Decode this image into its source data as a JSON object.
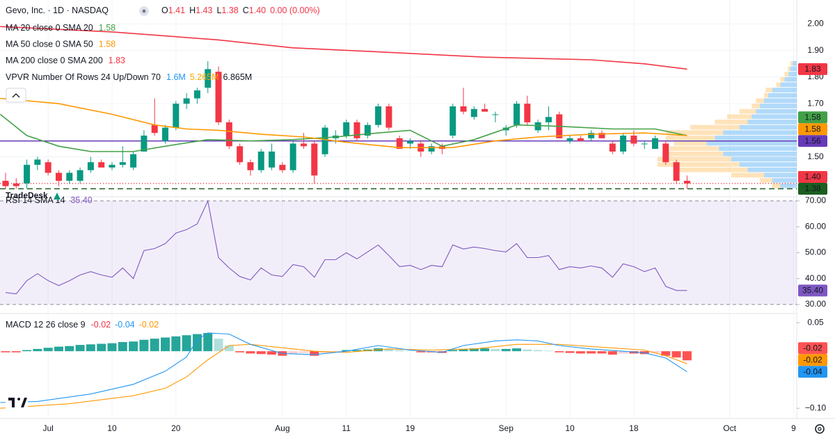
{
  "chart_data": [
    {
      "type": "candlestick",
      "title": "Gevo, Inc. · 1D · NASDAQ",
      "readout": [
        {
          "key": "O",
          "text": "1.41"
        },
        {
          "key": "H",
          "text": "1.43"
        },
        {
          "key": "L",
          "text": "1.38"
        },
        {
          "key": "C",
          "text": "1.40"
        }
      ],
      "change": "0.00 (0.00%)",
      "annotation": "TradeDesk",
      "xlim": [
        -0.52,
        74.3
      ],
      "xticks": [
        {
          "value": 4,
          "label": "Jul"
        },
        {
          "value": 10,
          "label": "10"
        },
        {
          "value": 16,
          "label": "20"
        },
        {
          "value": 26,
          "label": "Aug"
        },
        {
          "value": 32,
          "label": "11"
        },
        {
          "value": 38,
          "label": "19"
        },
        {
          "value": 47,
          "label": "Sep"
        },
        {
          "value": 53,
          "label": "10"
        },
        {
          "value": 59,
          "label": "18"
        },
        {
          "value": 68,
          "label": "Oct"
        },
        {
          "value": 74,
          "label": "9"
        }
      ],
      "ylim": [
        1.35,
        2.09
      ],
      "yticks": [
        {
          "value": 1.5,
          "label": "1.50"
        },
        {
          "value": 1.7,
          "label": "1.70"
        },
        {
          "value": 1.8,
          "label": "1.80"
        },
        {
          "value": 1.9,
          "label": "1.90"
        },
        {
          "value": 2.0,
          "label": "2.00"
        }
      ],
      "grid": true,
      "up_color": "#089981",
      "down_color": "#f23645",
      "open": [
        1.41,
        1.4,
        1.4,
        1.47,
        1.48,
        1.44,
        1.41,
        1.41,
        1.45,
        1.48,
        1.46,
        1.47,
        1.46,
        1.52,
        1.62,
        1.56,
        1.61,
        1.7,
        1.72,
        1.76,
        1.82,
        1.63,
        1.54,
        1.48,
        1.45,
        1.46,
        1.47,
        1.45,
        1.55,
        1.55,
        1.51,
        1.57,
        1.58,
        1.63,
        1.58,
        1.62,
        1.69,
        1.57,
        1.55,
        1.55,
        1.52,
        1.54,
        1.58,
        1.69,
        1.65,
        1.68,
        1.66,
        1.6,
        1.62,
        1.7,
        1.6,
        1.63,
        1.66,
        1.56,
        1.57,
        1.57,
        1.59,
        1.55,
        1.52,
        1.58,
        1.55,
        1.53,
        1.55,
        1.48,
        1.41
      ],
      "high": [
        1.44,
        1.42,
        1.49,
        1.5,
        1.49,
        1.45,
        1.45,
        1.46,
        1.5,
        1.49,
        1.48,
        1.54,
        1.52,
        1.6,
        1.72,
        1.62,
        1.71,
        1.74,
        1.76,
        1.86,
        1.84,
        1.64,
        1.55,
        1.49,
        1.53,
        1.55,
        1.48,
        1.56,
        1.59,
        1.56,
        1.62,
        1.6,
        1.64,
        1.64,
        1.63,
        1.7,
        1.7,
        1.58,
        1.57,
        1.56,
        1.55,
        1.55,
        1.7,
        1.76,
        1.69,
        1.7,
        1.67,
        1.62,
        1.71,
        1.73,
        1.64,
        1.69,
        1.67,
        1.58,
        1.58,
        1.6,
        1.6,
        1.56,
        1.59,
        1.6,
        1.56,
        1.58,
        1.56,
        1.49,
        1.43
      ],
      "low": [
        1.38,
        1.38,
        1.38,
        1.45,
        1.43,
        1.39,
        1.4,
        1.4,
        1.44,
        1.46,
        1.45,
        1.46,
        1.45,
        1.52,
        1.58,
        1.55,
        1.6,
        1.68,
        1.7,
        1.74,
        1.62,
        1.53,
        1.47,
        1.43,
        1.44,
        1.45,
        1.44,
        1.44,
        1.53,
        1.4,
        1.5,
        1.55,
        1.57,
        1.56,
        1.57,
        1.61,
        1.6,
        1.53,
        1.53,
        1.5,
        1.51,
        1.51,
        1.57,
        1.66,
        1.64,
        1.67,
        1.63,
        1.58,
        1.61,
        1.62,
        1.59,
        1.6,
        1.57,
        1.55,
        1.56,
        1.56,
        1.57,
        1.51,
        1.51,
        1.54,
        1.53,
        1.53,
        1.47,
        1.4,
        1.38
      ],
      "close": [
        1.39,
        1.39,
        1.47,
        1.49,
        1.44,
        1.41,
        1.44,
        1.45,
        1.48,
        1.46,
        1.47,
        1.48,
        1.51,
        1.58,
        1.59,
        1.61,
        1.7,
        1.72,
        1.75,
        1.83,
        1.63,
        1.54,
        1.48,
        1.45,
        1.52,
        1.52,
        1.45,
        1.55,
        1.54,
        1.43,
        1.61,
        1.58,
        1.63,
        1.57,
        1.62,
        1.69,
        1.61,
        1.53,
        1.56,
        1.52,
        1.54,
        1.53,
        1.69,
        1.67,
        1.68,
        1.67,
        1.66,
        1.61,
        1.7,
        1.63,
        1.63,
        1.65,
        1.57,
        1.57,
        1.56,
        1.59,
        1.57,
        1.52,
        1.58,
        1.55,
        1.55,
        1.57,
        1.48,
        1.41,
        1.4
      ],
      "ma": [
        {
          "name": "MA 20 close 0 SMA 20",
          "readout": "1.58",
          "color": "#43a047",
          "x": [
            -0.5,
            2,
            5,
            8,
            12,
            15,
            19,
            23,
            27,
            31,
            35,
            38,
            41,
            44,
            48,
            52,
            57,
            61,
            64
          ],
          "values": [
            1.66,
            1.58,
            1.54,
            1.52,
            1.52,
            1.54,
            1.565,
            1.56,
            1.565,
            1.575,
            1.59,
            1.6,
            1.54,
            1.565,
            1.62,
            1.615,
            1.605,
            1.605,
            1.58
          ]
        },
        {
          "name": "MA 50 close 0 SMA 50",
          "readout": "1.58",
          "color": "#ff9800",
          "x": [
            -0.5,
            5,
            10,
            14,
            17,
            20,
            24,
            28,
            32,
            37,
            42,
            46,
            50,
            55,
            60,
            64
          ],
          "values": [
            1.72,
            1.7,
            1.66,
            1.62,
            1.605,
            1.6,
            1.585,
            1.575,
            1.555,
            1.535,
            1.535,
            1.56,
            1.575,
            1.585,
            1.59,
            1.58
          ]
        },
        {
          "name": "MA 200 close 0 SMA 200",
          "readout": "1.83",
          "color": "#f23645",
          "x": [
            -0.5,
            10,
            20,
            27,
            35,
            45,
            55,
            60,
            64
          ],
          "values": [
            1.99,
            1.97,
            1.94,
            1.91,
            1.895,
            1.875,
            1.865,
            1.85,
            1.83
          ]
        }
      ],
      "vp": {
        "name": "VPVR Number Of Rows 24 Up/Down 70",
        "readouts": [
          "1.6M",
          "5.265M",
          "6.865M"
        ],
        "low": 1.38,
        "high": 1.86,
        "up_color": "#64b5f6",
        "down_color": "#ffcc80",
        "up": [
          20,
          30,
          40,
          60,
          70,
          80,
          90,
          95,
          110,
          100,
          90,
          70,
          60,
          55,
          50,
          45,
          40,
          35,
          30,
          20,
          15,
          10,
          8,
          5
        ],
        "down": [
          10,
          15,
          40,
          90,
          100,
          90,
          70,
          60,
          40,
          60,
          70,
          60,
          40,
          30,
          20,
          10,
          10,
          5,
          8,
          5,
          5,
          5,
          3,
          3
        ]
      },
      "hlines": [
        {
          "value": 1.56,
          "color": "#673ab7",
          "style": "solid"
        },
        {
          "value": 1.4,
          "color": "#f23645",
          "style": "dotted"
        },
        {
          "value": 1.38,
          "color": "#1b5e20",
          "style": "dashed"
        }
      ],
      "right_labels": [
        {
          "value": 1.83,
          "label": "1.83",
          "color": "#f23645"
        },
        {
          "value": 1.58,
          "label": "1.58",
          "color": "#ff9800",
          "text_color": "#131722"
        },
        {
          "value": 1.58,
          "label": "1.58",
          "color": "#43a047"
        },
        {
          "value": 1.56,
          "label": "1.56",
          "color": "#673ab7"
        },
        {
          "value": 1.4,
          "label": "1.40",
          "color": "#f23645"
        },
        {
          "value": 1.38,
          "label": "1.38",
          "color": "#1b5e20"
        }
      ]
    },
    {
      "type": "line",
      "name": "RSI 14 SMA 14",
      "readout": "35.40",
      "color": "#7e57c2",
      "ylim": [
        26.5,
        71.6
      ],
      "yticks": [
        {
          "value": 30,
          "label": "30.00"
        },
        {
          "value": 40,
          "label": "40.00"
        },
        {
          "value": 50,
          "label": "50.00"
        },
        {
          "value": 60,
          "label": "60.00"
        },
        {
          "value": 70,
          "label": "70.00"
        }
      ],
      "band": [
        30,
        70
      ],
      "values": [
        34.6,
        34.1,
        39.2,
        41.9,
        39.2,
        37.3,
        39.2,
        41.4,
        42.7,
        41.4,
        40.5,
        44.1,
        40.0,
        50.8,
        51.6,
        53.5,
        57.6,
        58.9,
        61.1,
        70.0,
        48.1,
        44.1,
        40.8,
        39.5,
        44.1,
        41.4,
        40.8,
        45.4,
        44.6,
        40.5,
        47.3,
        47.3,
        50.0,
        47.6,
        50.3,
        53.0,
        48.9,
        44.6,
        45.1,
        43.5,
        45.1,
        44.6,
        53.0,
        51.4,
        52.2,
        51.6,
        50.8,
        50.3,
        53.5,
        48.1,
        48.1,
        48.9,
        43.5,
        44.6,
        44.1,
        44.9,
        44.1,
        40.5,
        45.7,
        44.6,
        42.7,
        44.1,
        37.0,
        35.4,
        35.4
      ],
      "right_labels": [
        {
          "value": 35.4,
          "label": "35.40",
          "color": "#7e57c2"
        }
      ]
    },
    {
      "type": "macd",
      "name": "MACD 12 26 close 9",
      "ylim": [
        -0.118,
        0.066
      ],
      "yticks": [
        0.05,
        {
          "value": -0.1,
          "label": "−0.10"
        }
      ],
      "histogram": {
        "readout": "-0.02",
        "colors": [
          "#26a69a",
          "#b2dfdb",
          "#ff5252",
          "#ffcdd2"
        ],
        "values": [
          -0.002,
          -0.002,
          0.002,
          0.004,
          0.006,
          0.008,
          0.009,
          0.011,
          0.012,
          0.013,
          0.014,
          0.016,
          0.017,
          0.02,
          0.022,
          0.024,
          0.026,
          0.028,
          0.03,
          0.032,
          0.022,
          0.01,
          -0.002,
          -0.004,
          -0.005,
          -0.006,
          -0.008,
          -0.004,
          -0.003,
          -0.008,
          -0.003,
          -0.001,
          0.002,
          0.002,
          0.003,
          0.005,
          0.004,
          0.002,
          0.001,
          -0.002,
          -0.002,
          -0.003,
          0.002,
          0.004,
          0.005,
          0.005,
          0.004,
          0.004,
          0.005,
          0.003,
          0.002,
          0.001,
          -0.002,
          -0.003,
          -0.004,
          -0.004,
          -0.004,
          -0.006,
          -0.004,
          -0.004,
          -0.005,
          -0.003,
          -0.008,
          -0.011,
          -0.016
        ]
      },
      "macd": {
        "readout": "-0.04",
        "color": "#2196f3",
        "x": [
          -0.5,
          3,
          8,
          12,
          15,
          17,
          18,
          19,
          21,
          23,
          26,
          29,
          32,
          35,
          38,
          41,
          43,
          46,
          48,
          50,
          52,
          55,
          58,
          60,
          62,
          64
        ],
        "values": [
          -0.09,
          -0.088,
          -0.075,
          -0.058,
          -0.035,
          -0.01,
          0.02,
          0.032,
          0.03,
          0.012,
          -0.004,
          -0.006,
          0,
          0.01,
          0.002,
          -0.002,
          0.01,
          0.018,
          0.02,
          0.018,
          0.01,
          0.004,
          0,
          -0.003,
          -0.012,
          -0.036
        ]
      },
      "signal": {
        "readout": "-0.02",
        "color": "#ff9800",
        "x": [
          -0.5,
          6,
          12,
          15,
          17,
          19,
          21,
          23,
          26,
          29,
          32,
          36,
          40,
          44,
          48,
          52,
          56,
          60,
          62,
          64
        ],
        "values": [
          -0.1,
          -0.092,
          -0.078,
          -0.065,
          -0.045,
          -0.015,
          0.01,
          0.012,
          0.006,
          0,
          -0.002,
          0.004,
          0.002,
          0.004,
          0.012,
          0.012,
          0.007,
          0.002,
          -0.008,
          -0.022
        ]
      },
      "right_labels": [
        {
          "value": -0.022,
          "label": "-0.02",
          "color": "#ff9800"
        },
        {
          "value": -0.016,
          "label": "-0.02",
          "color": "#ff5252"
        },
        {
          "value": -0.036,
          "label": "-0.04",
          "color": "#2196f3"
        }
      ]
    }
  ]
}
